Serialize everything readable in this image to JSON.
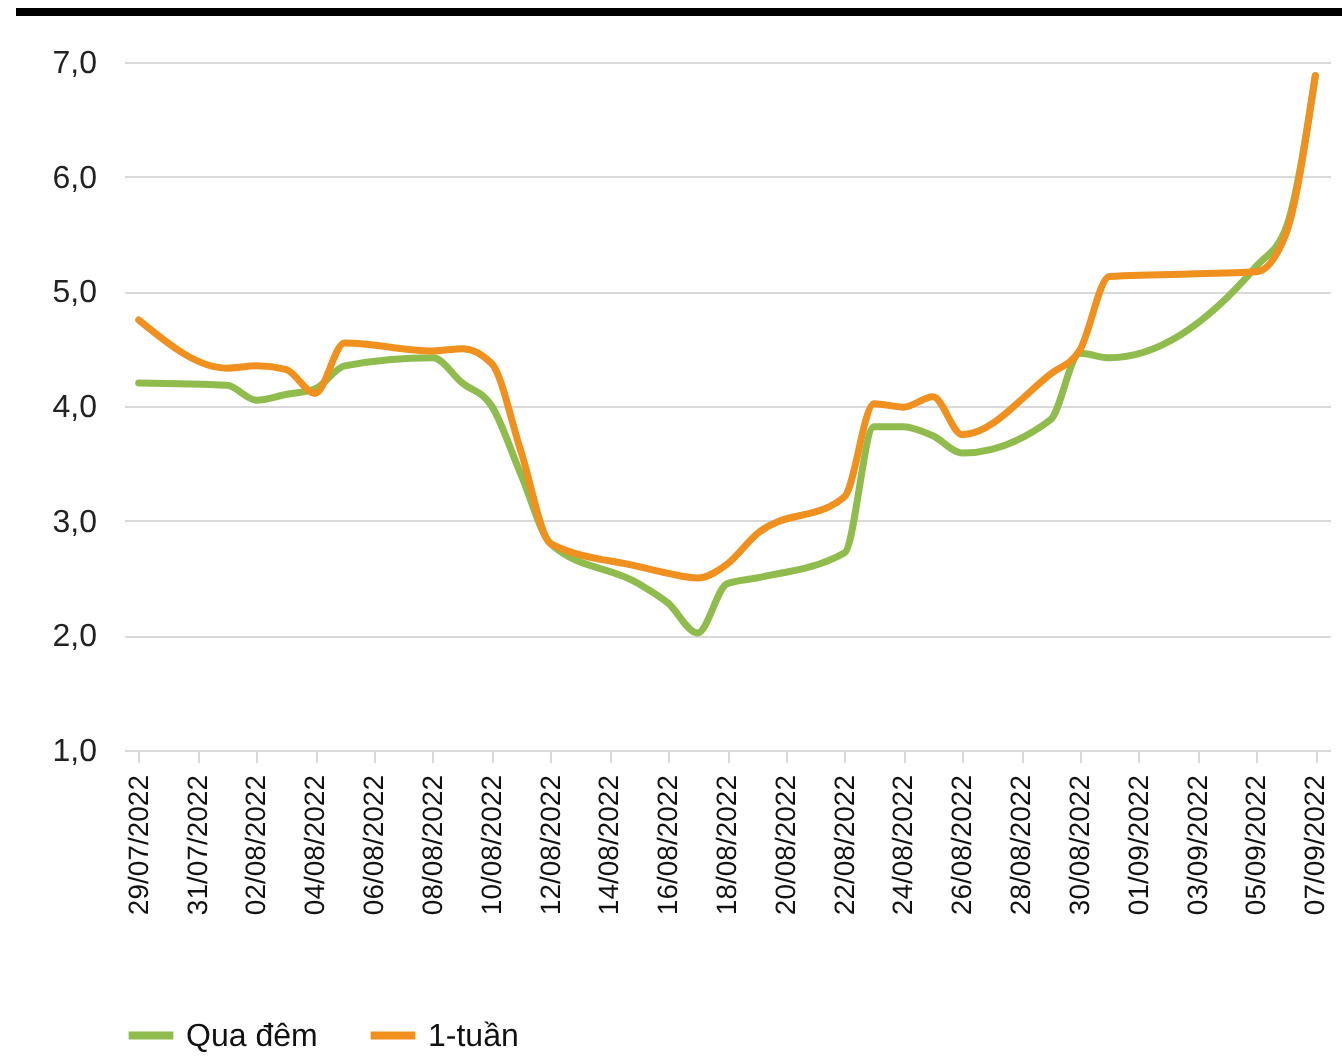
{
  "chart_data": {
    "type": "line",
    "x": [
      "2022-07-29",
      "2022-08-01",
      "2022-08-02",
      "2022-08-03",
      "2022-08-04",
      "2022-08-05",
      "2022-08-08",
      "2022-08-09",
      "2022-08-10",
      "2022-08-11",
      "2022-08-12",
      "2022-08-15",
      "2022-08-16",
      "2022-08-17",
      "2022-08-18",
      "2022-08-19",
      "2022-08-22",
      "2022-08-23",
      "2022-08-24",
      "2022-08-25",
      "2022-08-26",
      "2022-08-29",
      "2022-08-30",
      "2022-08-31",
      "2022-09-05",
      "2022-09-06",
      "2022-09-07"
    ],
    "series": [
      {
        "name": "Qua đêm",
        "color": "#8fbc4c",
        "values": [
          4.2,
          4.18,
          4.05,
          4.1,
          4.15,
          4.35,
          4.42,
          4.2,
          4.0,
          3.4,
          2.8,
          2.45,
          2.28,
          2.02,
          2.45,
          2.5,
          2.72,
          3.82,
          3.82,
          3.74,
          3.59,
          3.88,
          4.46,
          4.42,
          5.22,
          5.55,
          6.88
        ]
      },
      {
        "name": "1-tuần",
        "color": "#f0901e",
        "values": [
          4.75,
          4.33,
          4.35,
          4.32,
          4.11,
          4.55,
          4.48,
          4.5,
          4.37,
          3.6,
          2.8,
          2.6,
          2.54,
          2.5,
          2.62,
          2.88,
          3.21,
          4.02,
          3.99,
          4.08,
          3.75,
          4.28,
          4.49,
          5.13,
          5.17,
          5.5,
          6.88
        ]
      }
    ],
    "xlim": [
      "2022-07-28T12:00",
      "2022-09-07T12:00"
    ],
    "xticks": [
      {
        "value": "2022-07-29",
        "label": "29/07/2022"
      },
      {
        "value": "2022-07-31",
        "label": "31/07/2022"
      },
      {
        "value": "2022-08-02",
        "label": "02/08/2022"
      },
      {
        "value": "2022-08-04",
        "label": "04/08/2022"
      },
      {
        "value": "2022-08-06",
        "label": "06/08/2022"
      },
      {
        "value": "2022-08-08",
        "label": "08/08/2022"
      },
      {
        "value": "2022-08-10",
        "label": "10/08/2022"
      },
      {
        "value": "2022-08-12",
        "label": "12/08/2022"
      },
      {
        "value": "2022-08-14",
        "label": "14/08/2022"
      },
      {
        "value": "2022-08-16",
        "label": "16/08/2022"
      },
      {
        "value": "2022-08-18",
        "label": "18/08/2022"
      },
      {
        "value": "2022-08-20",
        "label": "20/08/2022"
      },
      {
        "value": "2022-08-22",
        "label": "22/08/2022"
      },
      {
        "value": "2022-08-24",
        "label": "24/08/2022"
      },
      {
        "value": "2022-08-26",
        "label": "26/08/2022"
      },
      {
        "value": "2022-08-28",
        "label": "28/08/2022"
      },
      {
        "value": "2022-08-30",
        "label": "30/08/2022"
      },
      {
        "value": "2022-09-01",
        "label": "01/09/2022"
      },
      {
        "value": "2022-09-03",
        "label": "03/09/2022"
      },
      {
        "value": "2022-09-05",
        "label": "05/09/2022"
      },
      {
        "value": "2022-09-07",
        "label": "07/09/2022"
      }
    ],
    "ylim": [
      1,
      7
    ],
    "yticks": [
      {
        "value": 1,
        "label": "1,0"
      },
      {
        "value": 2,
        "label": "2,0"
      },
      {
        "value": 3,
        "label": "3,0"
      },
      {
        "value": 4,
        "label": "4,0"
      },
      {
        "value": 5,
        "label": "5,0"
      },
      {
        "value": 6,
        "label": "6,0"
      },
      {
        "value": 7,
        "label": "7,0"
      }
    ],
    "grid": "y",
    "legend": "bottom",
    "line_style": "solid",
    "marker": "none"
  }
}
